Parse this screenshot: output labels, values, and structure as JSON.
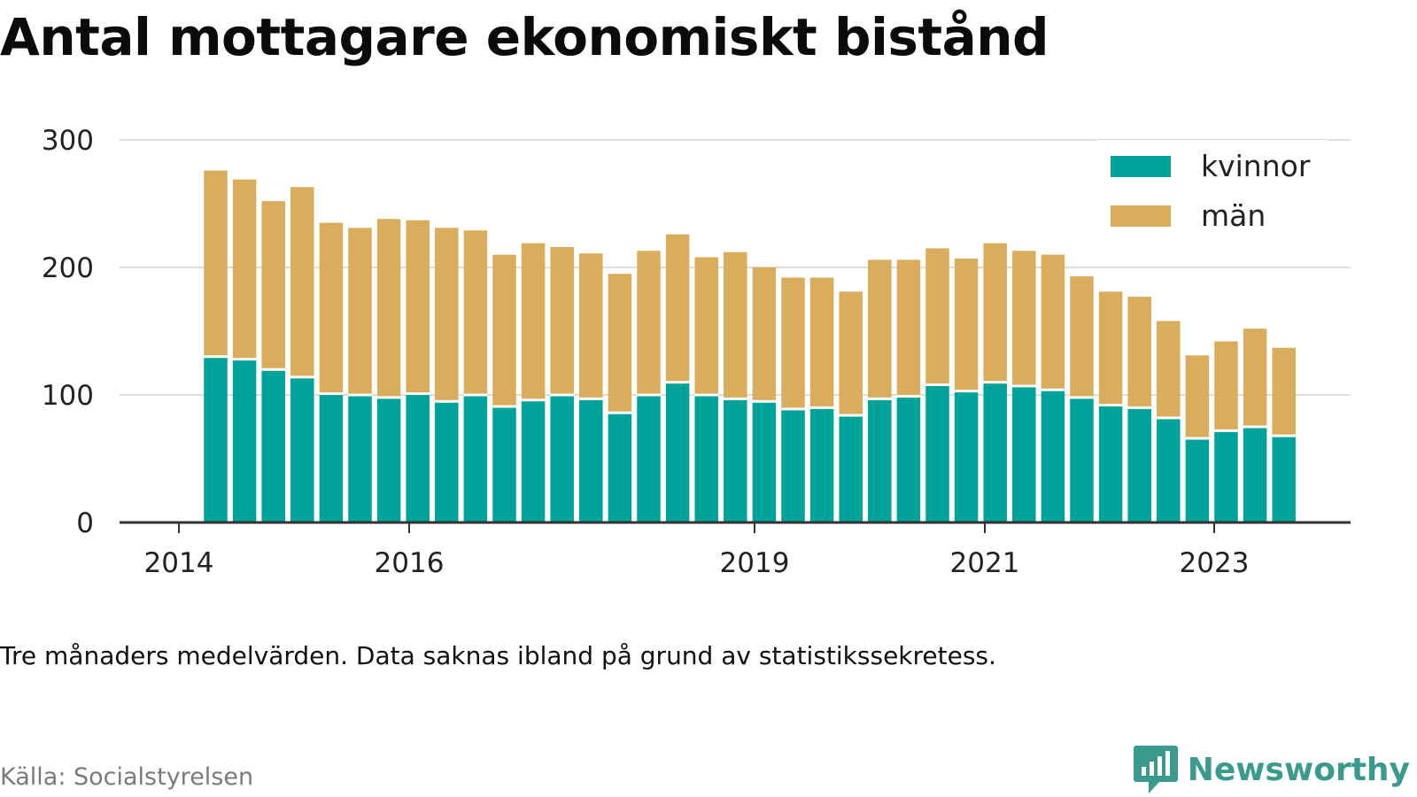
{
  "title": "Antal mottagare ekonomiskt bistånd",
  "note": "Tre månaders medelvärden. Data saknas ibland på grund av statistikssekretess.",
  "source": "Källa: Socialstyrelsen",
  "brand": {
    "name": "Newsworthy",
    "icon": "newsworthy-logo-icon"
  },
  "colors": {
    "kvinnor": "#00a39a",
    "man": "#d9ad5b",
    "grid": "#dddddd",
    "axis": "#333333"
  },
  "chart_data": {
    "type": "bar",
    "stacked": true,
    "title": "Antal mottagare ekonomiskt bistånd",
    "xlabel": "",
    "ylabel": "",
    "ylim": [
      0,
      300
    ],
    "yticks": [
      0,
      100,
      200,
      300
    ],
    "xtick_labels": [
      "2014",
      "2016",
      "2019",
      "2021",
      "2023"
    ],
    "grid": true,
    "legend_position": "top-right",
    "categories": [
      "2014-Q2",
      "2014-Q3",
      "2014-Q4",
      "2015-Q1",
      "2015-Q2",
      "2015-Q3",
      "2015-Q4",
      "2016-Q1",
      "2016-Q2",
      "2016-Q3",
      "2016-Q4",
      "2017-Q1",
      "2017-Q2",
      "2017-Q3",
      "2017-Q4",
      "2018-Q1",
      "2018-Q2",
      "2018-Q3",
      "2018-Q4",
      "2019-Q1",
      "2019-Q2",
      "2019-Q3",
      "2019-Q4",
      "2020-Q1",
      "2020-Q2",
      "2020-Q3",
      "2020-Q4",
      "2021-Q1",
      "2021-Q2",
      "2021-Q3",
      "2021-Q4",
      "2022-Q1",
      "2022-Q2",
      "2022-Q3",
      "2022-Q4",
      "2023-Q1",
      "2023-Q2",
      "2023-Q3"
    ],
    "series": [
      {
        "name": "kvinnor",
        "values": [
          130,
          128,
          120,
          114,
          101,
          100,
          98,
          101,
          95,
          100,
          91,
          96,
          100,
          97,
          86,
          100,
          110,
          100,
          97,
          95,
          89,
          90,
          84,
          97,
          99,
          108,
          103,
          110,
          107,
          104,
          98,
          92,
          90,
          82,
          66,
          72,
          75,
          68
        ]
      },
      {
        "name": "män",
        "values": [
          146,
          141,
          132,
          149,
          134,
          131,
          140,
          136,
          136,
          129,
          119,
          123,
          116,
          114,
          109,
          113,
          116,
          108,
          115,
          105,
          103,
          102,
          97,
          109,
          107,
          107,
          104,
          109,
          106,
          106,
          95,
          89,
          87,
          76,
          65,
          70,
          77,
          69
        ]
      }
    ]
  }
}
